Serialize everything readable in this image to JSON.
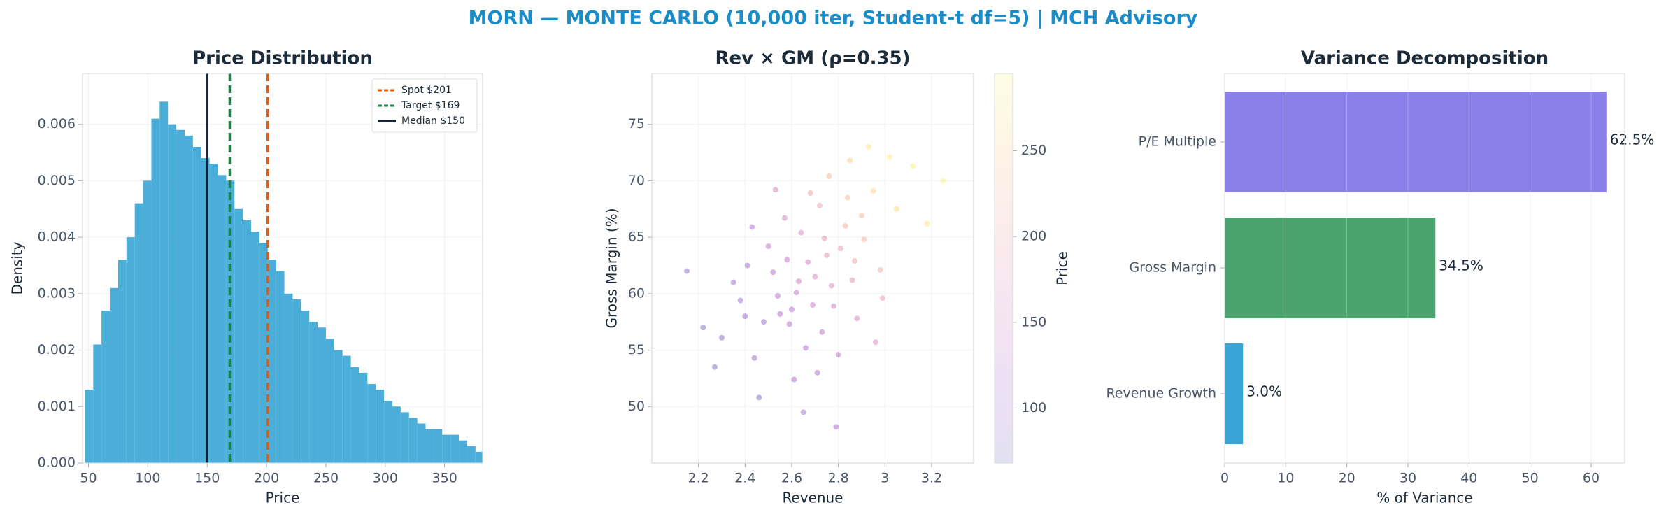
{
  "title": "MORN — MONTE CARLO (10,000 iter, Student-t df=5) | MCH Advisory",
  "chart_data": [
    {
      "type": "histogram",
      "title": "Price Distribution",
      "x_label": "Price",
      "y_label": "Density",
      "color": "#4aaed9",
      "bins": [
        47,
        54,
        61,
        68,
        75,
        82,
        89,
        96,
        103,
        110,
        117,
        124,
        131,
        138,
        145,
        152,
        159,
        166,
        173,
        180,
        187,
        194,
        201,
        208,
        215,
        222,
        229,
        236,
        243,
        250,
        257,
        264,
        271,
        278,
        285,
        292,
        299,
        306,
        313,
        320,
        327,
        334,
        341,
        348,
        355,
        362,
        369,
        376,
        383
      ],
      "values": [
        0.0013,
        0.0021,
        0.0027,
        0.0031,
        0.0036,
        0.004,
        0.0046,
        0.005,
        0.0061,
        0.0064,
        0.006,
        0.0059,
        0.0058,
        0.0056,
        0.0054,
        0.0053,
        0.0051,
        0.005,
        0.0045,
        0.0043,
        0.0041,
        0.0039,
        0.0036,
        0.0034,
        0.003,
        0.0029,
        0.0027,
        0.0025,
        0.0024,
        0.0022,
        0.002,
        0.0019,
        0.0017,
        0.0016,
        0.0014,
        0.0013,
        0.0011,
        0.001,
        0.0009,
        0.0008,
        0.0007,
        0.0006,
        0.0006,
        0.0005,
        0.0005,
        0.0004,
        0.0003,
        0.0002
      ],
      "lines": [
        {
          "name": "Spot $201",
          "value": 201,
          "color": "#e8590c",
          "dashed": true
        },
        {
          "name": "Target $169",
          "value": 169,
          "color": "#17873f",
          "dashed": true
        },
        {
          "name": "Median $150",
          "value": 150,
          "color": "#15243a",
          "dashed": false
        }
      ],
      "xlim": [
        45,
        382
      ],
      "xticks": [
        50,
        100,
        150,
        200,
        250,
        300,
        350
      ],
      "ylim": [
        0,
        0.0069
      ],
      "yticks": [
        {
          "value": 0,
          "label": "0.000"
        },
        {
          "value": 0.001,
          "label": "0.001"
        },
        {
          "value": 0.002,
          "label": "0.002"
        },
        {
          "value": 0.003,
          "label": "0.003"
        },
        {
          "value": 0.004,
          "label": "0.004"
        },
        {
          "value": 0.005,
          "label": "0.005"
        },
        {
          "value": 0.006,
          "label": "0.006"
        }
      ],
      "grid": true,
      "legend": "upper right"
    },
    {
      "type": "scatter",
      "title": "Rev × GM (ρ=0.35)",
      "x_label": "Revenue",
      "y_label": "Gross Margin (%)",
      "colorbar_label": "Price",
      "colormap": "plasma",
      "x": [
        2.62,
        2.75,
        2.55,
        2.83,
        2.48,
        2.91,
        2.7,
        2.66,
        2.95,
        2.38,
        2.78,
        2.58,
        3.05,
        2.44,
        2.72,
        2.86,
        2.52,
        2.69,
        3.12,
        2.3,
        2.64,
        2.8,
        2.57,
        2.98,
        2.41,
        2.76,
        2.88,
        2.61,
        2.67,
        2.93,
        2.22,
        2.5,
        2.84,
        2.73,
        3.18,
        2.35,
        2.59,
        2.81,
        2.46,
        2.99,
        2.68,
        2.54,
        2.77,
        3.02,
        2.27,
        2.63,
        2.9,
        2.71,
        2.43,
        2.85,
        2.6,
        2.74,
        2.96,
        2.4,
        3.25,
        2.65,
        2.53,
        2.87,
        2.79,
        2.15
      ],
      "y": [
        60.1,
        63.4,
        58.2,
        66.0,
        57.5,
        64.8,
        61.5,
        55.2,
        69.1,
        59.4,
        58.9,
        63.0,
        67.5,
        54.3,
        67.8,
        61.2,
        61.9,
        59.0,
        71.3,
        56.1,
        65.4,
        54.6,
        66.7,
        62.1,
        62.5,
        70.4,
        57.8,
        52.4,
        62.8,
        73.0,
        57.0,
        64.2,
        68.5,
        56.6,
        66.2,
        61.0,
        57.3,
        64.0,
        50.8,
        59.6,
        68.9,
        59.8,
        60.7,
        72.1,
        53.5,
        61.1,
        66.9,
        53.0,
        65.9,
        71.8,
        58.6,
        64.9,
        55.7,
        58.0,
        70.0,
        49.5,
        69.2,
        62.9,
        48.2,
        62.0
      ],
      "color_values": [
        140,
        185,
        118,
        215,
        105,
        220,
        160,
        120,
        255,
        100,
        150,
        140,
        260,
        90,
        200,
        180,
        125,
        140,
        285,
        85,
        165,
        135,
        150,
        210,
        110,
        225,
        160,
        105,
        155,
        275,
        80,
        130,
        230,
        130,
        270,
        100,
        120,
        190,
        80,
        190,
        195,
        125,
        160,
        280,
        75,
        145,
        230,
        115,
        125,
        250,
        130,
        180,
        165,
        95,
        290,
        95,
        160,
        200,
        110,
        85
      ],
      "xlim": [
        2.0,
        3.38
      ],
      "xticks": [
        2.2,
        2.4,
        2.6,
        2.8,
        3.0,
        3.2
      ],
      "ylim": [
        45,
        79.5
      ],
      "yticks": [
        50,
        55,
        60,
        65,
        70,
        75
      ],
      "clim": [
        68,
        295
      ],
      "cticks": [
        100,
        150,
        200,
        250
      ],
      "grid": true
    },
    {
      "type": "hbar",
      "title": "Variance Decomposition",
      "x_label": "% of Variance",
      "categories": [
        "Revenue Growth",
        "Gross Margin",
        "P/E Multiple"
      ],
      "values": [
        3.0,
        34.5,
        62.5
      ],
      "value_labels": [
        "3.0%",
        "34.5%",
        "62.5%"
      ],
      "colors": [
        "#3aa3d6",
        "#4aa36c",
        "#8a7fe8"
      ],
      "xlim": [
        0,
        65.5
      ],
      "xticks": [
        0,
        10,
        20,
        30,
        40,
        50,
        60
      ],
      "grid": true
    }
  ]
}
